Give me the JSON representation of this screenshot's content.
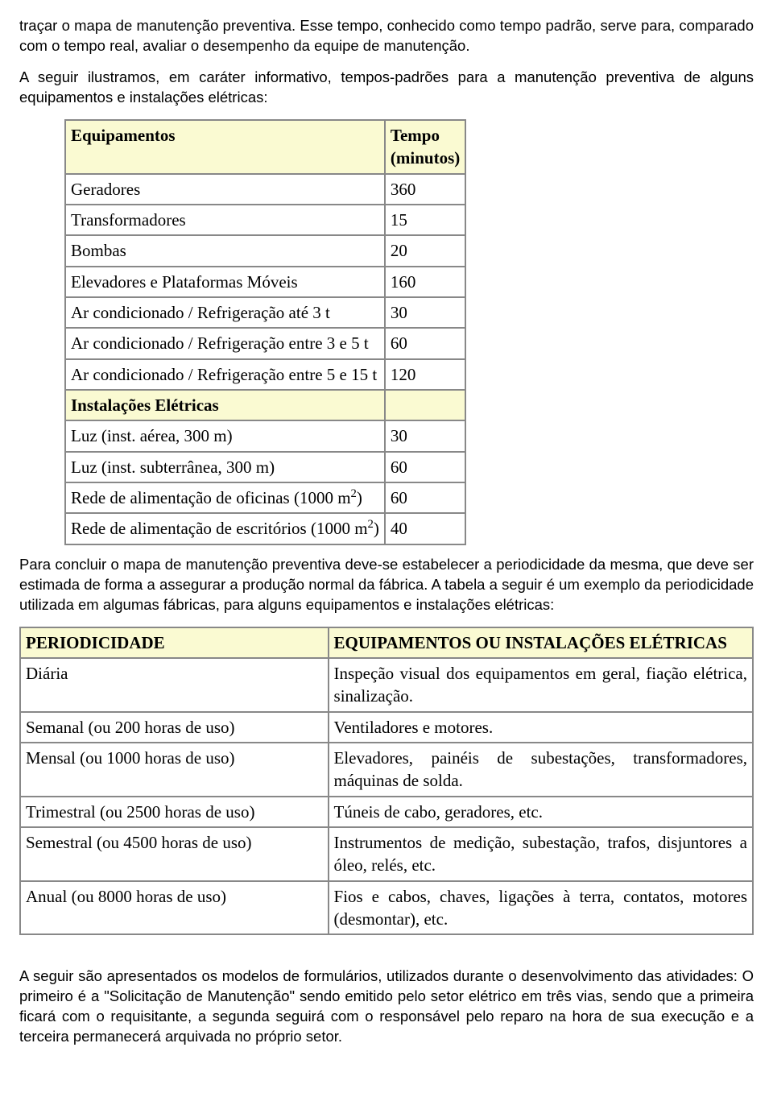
{
  "para1": "traçar o mapa de manutenção preventiva. Esse tempo, conhecido como tempo padrão, serve para, comparado com o tempo real, avaliar o desempenho da equipe de manutenção.",
  "para2": "A seguir ilustramos, em caráter informativo, tempos-padrões para a manutenção preventiva de alguns equipamentos e instalações elétricas:",
  "table1": {
    "header_equip": "Equipamentos",
    "header_tempo_1": "Tempo",
    "header_tempo_2": "(minutos)",
    "rows_a": [
      {
        "label": "Geradores",
        "value": "360"
      },
      {
        "label": "Transformadores",
        "value": "15"
      },
      {
        "label": "Bombas",
        "value": "20"
      },
      {
        "label": "Elevadores e Plataformas Móveis",
        "value": "160"
      },
      {
        "label": "Ar condicionado / Refrigeração até 3 t",
        "value": "30"
      },
      {
        "label": "Ar condicionado / Refrigeração entre 3 e 5 t",
        "value": "60"
      },
      {
        "label": "Ar condicionado / Refrigeração entre 5 e 15 t",
        "value": "120"
      }
    ],
    "section_header": "Instalações Elétricas",
    "rows_b": [
      {
        "label": "Luz (inst. aérea, 300 m)",
        "value": "30"
      },
      {
        "label": "Luz (inst. subterrânea, 300 m)",
        "value": "60"
      }
    ],
    "rows_c": [
      {
        "label_pre": "Rede de alimentação de oficinas (1000 m",
        "label_sup": "2",
        "label_post": ")",
        "value": "60"
      },
      {
        "label_pre": "Rede de alimentação de escritórios (1000 m",
        "label_sup": "2",
        "label_post": ")",
        "value": "40"
      }
    ]
  },
  "para3": "Para concluir o mapa de manutenção preventiva deve-se estabelecer a periodicidade da mesma, que deve ser estimada de forma a assegurar a produção normal da fábrica. A tabela a seguir é um exemplo da periodicidade utilizada em algumas fábricas, para alguns equipamentos e instalações elétricas:",
  "table2": {
    "header_left": "PERIODICIDADE",
    "header_right": "EQUIPAMENTOS OU INSTALAÇÕES ELÉTRICAS",
    "rows": [
      {
        "left": "Diária",
        "right": "Inspeção visual dos equipamentos em geral, fiação elétrica, sinalização."
      },
      {
        "left": "Semanal (ou 200 horas de uso)",
        "right": "Ventiladores e motores."
      },
      {
        "left": "Mensal (ou 1000 horas de uso)",
        "right": "Elevadores, painéis de subestações, transformadores, máquinas de solda."
      },
      {
        "left": "Trimestral (ou 2500 horas de uso)",
        "right": "Túneis de cabo, geradores, etc."
      },
      {
        "left": "Semestral (ou 4500 horas de uso)",
        "right": "Instrumentos de medição, subestação, trafos, disjuntores a óleo, relés, etc."
      },
      {
        "left": "Anual (ou 8000 horas de uso)",
        "right": "Fios e cabos, chaves, ligações à terra, contatos, motores (desmontar), etc."
      }
    ]
  },
  "para4": "A seguir são apresentados os modelos de formulários, utilizados durante o desenvolvimento das atividades: O primeiro é a \"Solicitação de Manutenção\" sendo emitido pelo setor elétrico em três vias, sendo que a primeira ficará com o requisitante, a segunda seguirá com o responsável pelo reparo na hora de sua execução e a terceira permanecerá arquivada no próprio setor."
}
